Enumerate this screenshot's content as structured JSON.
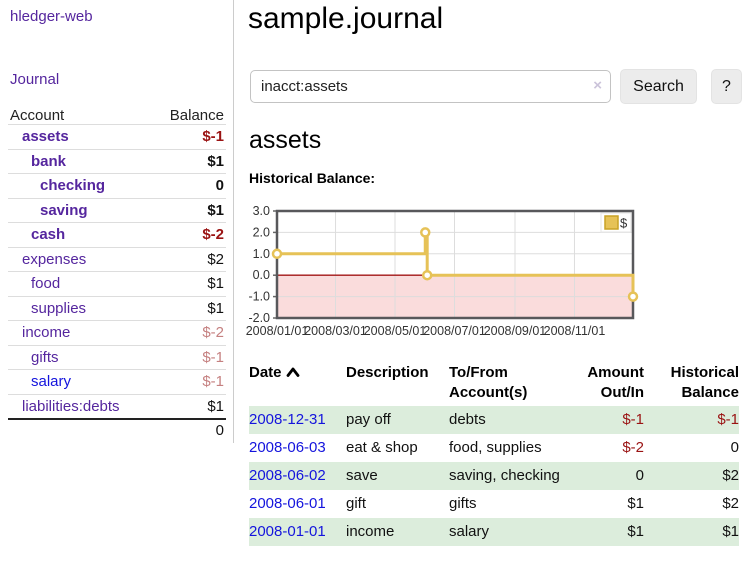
{
  "app": {
    "title": "hledger-web",
    "journal_label": "Journal"
  },
  "sidebar": {
    "header": {
      "account": "Account",
      "balance": "Balance"
    },
    "rows": [
      {
        "label": "assets",
        "balance": "$-1"
      },
      {
        "label": "bank",
        "balance": "$1"
      },
      {
        "label": "checking",
        "balance": "0"
      },
      {
        "label": "saving",
        "balance": "$1"
      },
      {
        "label": "cash",
        "balance": "$-2"
      },
      {
        "label": "expenses",
        "balance": "$2"
      },
      {
        "label": "food",
        "balance": "$1"
      },
      {
        "label": "supplies",
        "balance": "$1"
      },
      {
        "label": "income",
        "balance": "$-2"
      },
      {
        "label": "gifts",
        "balance": "$-1"
      },
      {
        "label": "salary",
        "balance": "$-1"
      },
      {
        "label": "liabilities:debts",
        "balance": "$1"
      }
    ],
    "total": "0"
  },
  "main": {
    "title": "sample.journal",
    "search": {
      "value": "inacct:assets",
      "clear_icon": "×",
      "button_label": "Search",
      "help_label": "?"
    },
    "account_heading": "assets"
  },
  "chart_data": {
    "type": "line",
    "title": "Historical Balance:",
    "legend": "$",
    "step": true,
    "points": [
      [
        "2008-01-01",
        1
      ],
      [
        "2008-06-01",
        2
      ],
      [
        "2008-06-03",
        0
      ],
      [
        "2008-12-31",
        -1
      ]
    ],
    "y_ticks": [
      "3.0",
      "2.0",
      "1.0",
      "0.0",
      "-1.0",
      "-2.0"
    ],
    "x_ticks": [
      "2008/01/01",
      "2008/03/01",
      "2008/05/01",
      "2008/07/01",
      "2008/09/01",
      "2008/11/01"
    ],
    "ylim": [
      -2,
      3
    ],
    "xlim": [
      "2008-01-01",
      "2008-12-31"
    ],
    "grid": true,
    "legend_position": "top-right",
    "colors": {
      "series": "#E6C257",
      "series_border": "#C9A227",
      "negative_fill": "#FADCDC",
      "zero_line": "#A21515"
    }
  },
  "table": {
    "headers": {
      "date": "Date",
      "description": "Description",
      "accounts": "To/From Account(s)",
      "amount": "Amount Out/In",
      "balance": "Historical Balance"
    },
    "rows": [
      {
        "date": "2008-12-31",
        "description": "pay off",
        "accounts": "debts",
        "amount": "$-1",
        "balance": "$-1"
      },
      {
        "date": "2008-06-03",
        "description": "eat & shop",
        "accounts": "food, supplies",
        "amount": "$-2",
        "balance": "0"
      },
      {
        "date": "2008-06-02",
        "description": "save",
        "accounts": "saving, checking",
        "amount": "0",
        "balance": "$2"
      },
      {
        "date": "2008-06-01",
        "description": "gift",
        "accounts": "gifts",
        "amount": "$1",
        "balance": "$2"
      },
      {
        "date": "2008-01-01",
        "description": "income",
        "accounts": "salary",
        "amount": "$1",
        "balance": "$1"
      }
    ]
  }
}
